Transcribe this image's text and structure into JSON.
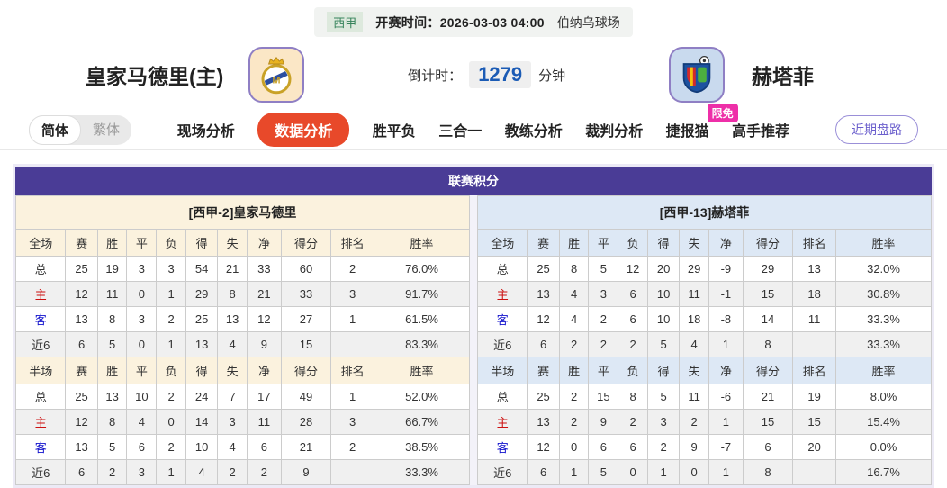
{
  "match_bar": {
    "league": "西甲",
    "kickoff_label": "开赛时间：",
    "kickoff_time": "2026-03-03 04:00",
    "venue": "伯纳乌球场"
  },
  "teams": {
    "home": {
      "name": "皇家马德里(主)"
    },
    "away": {
      "name": "赫塔菲"
    }
  },
  "countdown": {
    "label": "倒计时：",
    "value": "1279",
    "unit": "分钟"
  },
  "nav": {
    "lang": {
      "simplified": "简体",
      "traditional": "繁体",
      "active": "简体"
    },
    "tabs": [
      {
        "key": "live-analysis",
        "label": "现场分析"
      },
      {
        "key": "data-analysis",
        "label": "数据分析",
        "active": true
      },
      {
        "key": "win-draw-lose",
        "label": "胜平负"
      },
      {
        "key": "three-in-one",
        "label": "三合一"
      },
      {
        "key": "coach-analysis",
        "label": "教练分析"
      },
      {
        "key": "referee-analysis",
        "label": "裁判分析"
      },
      {
        "key": "jiebao-cat",
        "label": "捷报猫",
        "badge": "限免"
      },
      {
        "key": "expert-picks",
        "label": "高手推荐"
      }
    ],
    "recent_button": "近期盘路"
  },
  "colors": {
    "banner_purple": "#4a3c96",
    "active_tab_orange": "#e8492a",
    "promo_pink": "#ee2fa8",
    "countdown_blue": "#1b5bb5",
    "home_row_red": "#cc1111",
    "away_row_blue": "#1111cc",
    "league_green": "#35835a",
    "home_panel_cream": "#fbf2de",
    "away_panel_blue": "#dde8f5"
  },
  "standings": {
    "title": "联赛积分",
    "columns_full": [
      "全场",
      "赛",
      "胜",
      "平",
      "负",
      "得",
      "失",
      "净",
      "得分",
      "排名",
      "胜率"
    ],
    "columns_half": [
      "半场",
      "赛",
      "胜",
      "平",
      "负",
      "得",
      "失",
      "净",
      "得分",
      "排名",
      "胜率"
    ],
    "home": {
      "header": "[西甲-2]皇家马德里",
      "full_rows": [
        {
          "label": "总",
          "type": "total",
          "values": [
            "25",
            "19",
            "3",
            "3",
            "54",
            "21",
            "33",
            "60",
            "2",
            "76.0%"
          ]
        },
        {
          "label": "主",
          "type": "home",
          "values": [
            "12",
            "11",
            "0",
            "1",
            "29",
            "8",
            "21",
            "33",
            "3",
            "91.7%"
          ]
        },
        {
          "label": "客",
          "type": "away",
          "values": [
            "13",
            "8",
            "3",
            "2",
            "25",
            "13",
            "12",
            "27",
            "1",
            "61.5%"
          ]
        },
        {
          "label": "近6",
          "type": "recent",
          "values": [
            "6",
            "5",
            "0",
            "1",
            "13",
            "4",
            "9",
            "15",
            "",
            "83.3%"
          ]
        }
      ],
      "half_rows": [
        {
          "label": "总",
          "type": "total",
          "values": [
            "25",
            "13",
            "10",
            "2",
            "24",
            "7",
            "17",
            "49",
            "1",
            "52.0%"
          ]
        },
        {
          "label": "主",
          "type": "home",
          "values": [
            "12",
            "8",
            "4",
            "0",
            "14",
            "3",
            "11",
            "28",
            "3",
            "66.7%"
          ]
        },
        {
          "label": "客",
          "type": "away",
          "values": [
            "13",
            "5",
            "6",
            "2",
            "10",
            "4",
            "6",
            "21",
            "2",
            "38.5%"
          ]
        },
        {
          "label": "近6",
          "type": "recent",
          "values": [
            "6",
            "2",
            "3",
            "1",
            "4",
            "2",
            "2",
            "9",
            "",
            "33.3%"
          ]
        }
      ]
    },
    "away": {
      "header": "[西甲-13]赫塔菲",
      "full_rows": [
        {
          "label": "总",
          "type": "total",
          "values": [
            "25",
            "8",
            "5",
            "12",
            "20",
            "29",
            "-9",
            "29",
            "13",
            "32.0%"
          ]
        },
        {
          "label": "主",
          "type": "home",
          "values": [
            "13",
            "4",
            "3",
            "6",
            "10",
            "11",
            "-1",
            "15",
            "18",
            "30.8%"
          ]
        },
        {
          "label": "客",
          "type": "away",
          "values": [
            "12",
            "4",
            "2",
            "6",
            "10",
            "18",
            "-8",
            "14",
            "11",
            "33.3%"
          ]
        },
        {
          "label": "近6",
          "type": "recent",
          "values": [
            "6",
            "2",
            "2",
            "2",
            "5",
            "4",
            "1",
            "8",
            "",
            "33.3%"
          ]
        }
      ],
      "half_rows": [
        {
          "label": "总",
          "type": "total",
          "values": [
            "25",
            "2",
            "15",
            "8",
            "5",
            "11",
            "-6",
            "21",
            "19",
            "8.0%"
          ]
        },
        {
          "label": "主",
          "type": "home",
          "values": [
            "13",
            "2",
            "9",
            "2",
            "3",
            "2",
            "1",
            "15",
            "15",
            "15.4%"
          ]
        },
        {
          "label": "客",
          "type": "away",
          "values": [
            "12",
            "0",
            "6",
            "6",
            "2",
            "9",
            "-7",
            "6",
            "20",
            "0.0%"
          ]
        },
        {
          "label": "近6",
          "type": "recent",
          "values": [
            "6",
            "1",
            "5",
            "0",
            "1",
            "0",
            "1",
            "8",
            "",
            "16.7%"
          ]
        }
      ]
    }
  }
}
